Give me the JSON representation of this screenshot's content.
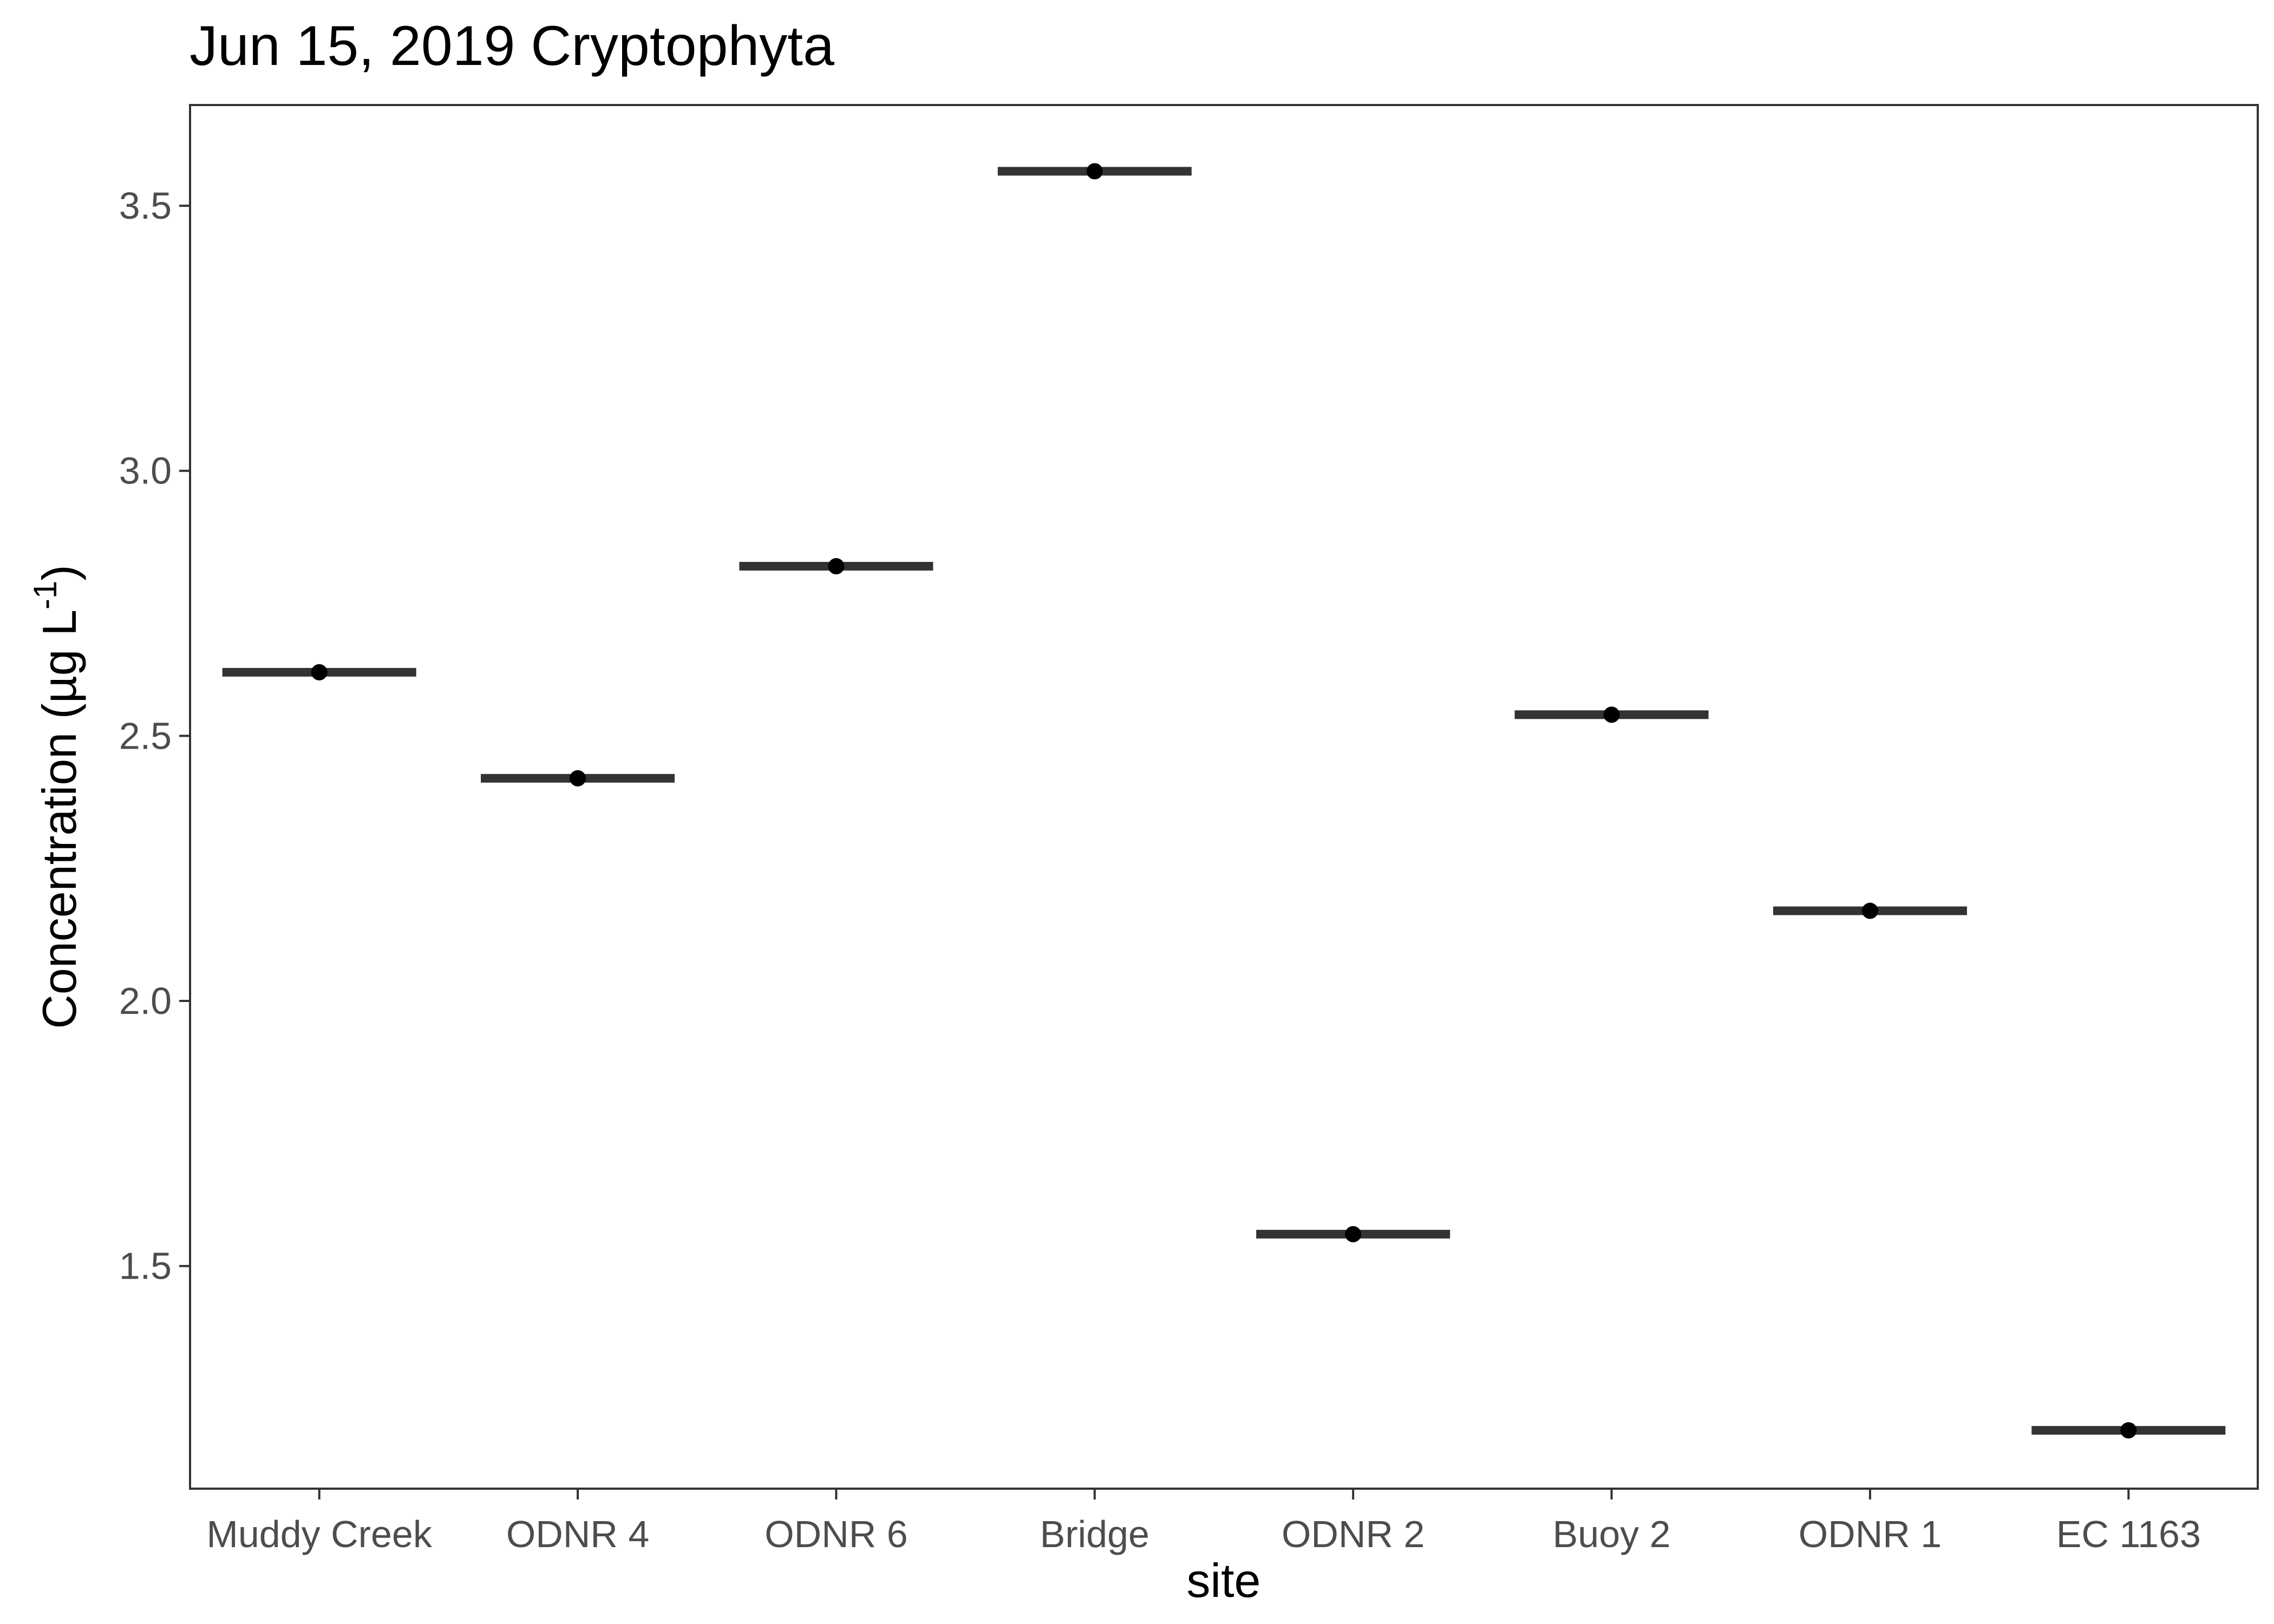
{
  "chart_data": {
    "type": "box",
    "title": "Jun 15, 2019 Cryptophyta",
    "xlabel": "site",
    "ylabel_main": "Concentration (µg L",
    "ylabel_sup": "-1",
    "ylabel_close": ")",
    "categories": [
      "Muddy Creek",
      "ODNR 4",
      "ODNR 6",
      "Bridge",
      "ODNR 2",
      "Buoy 2",
      "ODNR 1",
      "EC 1163"
    ],
    "values": [
      2.62,
      2.42,
      2.82,
      3.565,
      1.56,
      2.54,
      2.17,
      1.19
    ],
    "yticks": [
      1.5,
      2.0,
      2.5,
      3.0,
      3.5
    ],
    "ytick_labels": [
      "1.5",
      "2.0",
      "2.5",
      "3.0",
      "3.5"
    ],
    "ylim": [
      1.08,
      3.69
    ],
    "grid": false,
    "legend": "none",
    "colors": {
      "bar": "#333333",
      "point": "#000000",
      "border": "#333333",
      "tick_text": "#4d4d4d"
    }
  }
}
